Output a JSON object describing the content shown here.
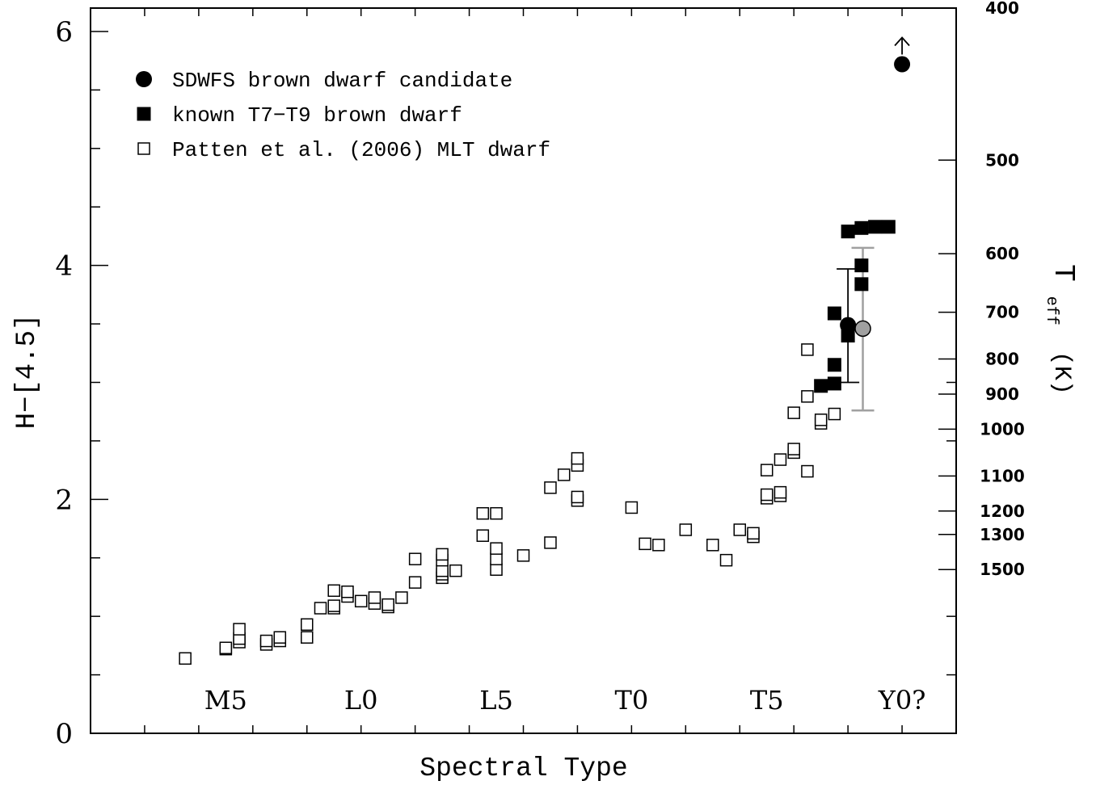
{
  "chart_data": {
    "type": "scatter",
    "xlabel": "Spectral Type",
    "ylabel": "H−[4.5]",
    "y2label": "T",
    "y2label_sub": "eff",
    "y2label_unit": "(K)",
    "xlim": [
      -2,
      30
    ],
    "ylim": [
      0,
      6.2
    ],
    "x_ticklabels": [
      {
        "x": 3,
        "label": "M5"
      },
      {
        "x": 8,
        "label": "L0"
      },
      {
        "x": 13,
        "label": "L5"
      },
      {
        "x": 18,
        "label": "T0"
      },
      {
        "x": 23,
        "label": "T5"
      },
      {
        "x": 28,
        "label": "Y0?"
      }
    ],
    "y_ticklabels": [
      {
        "y": 0,
        "label": "0"
      },
      {
        "y": 2,
        "label": "2"
      },
      {
        "y": 4,
        "label": "4"
      },
      {
        "y": 6,
        "label": "6"
      }
    ],
    "teff_ticklabels": [
      {
        "y": 6.2,
        "label": "400"
      },
      {
        "y": 4.9,
        "label": "500"
      },
      {
        "y": 4.1,
        "label": "600"
      },
      {
        "y": 3.6,
        "label": "700"
      },
      {
        "y": 3.2,
        "label": "800"
      },
      {
        "y": 2.9,
        "label": "900"
      },
      {
        "y": 2.6,
        "label": "1000"
      },
      {
        "y": 2.2,
        "label": "1100"
      },
      {
        "y": 1.9,
        "label": "1200"
      },
      {
        "y": 1.7,
        "label": "1300"
      },
      {
        "y": 1.4,
        "label": "1500"
      }
    ],
    "legend_placement": "top-left",
    "legend": [
      {
        "marker": "filled-circle",
        "label": "SDWFS brown dwarf candidate"
      },
      {
        "marker": "filled-square",
        "label": "known T7−T9 brown dwarf"
      },
      {
        "marker": "open-square",
        "label": "Patten et al. (2006) MLT dwarf"
      }
    ],
    "series": [
      {
        "name": "Patten et al. (2006) MLT dwarf",
        "marker": "open-square",
        "points": [
          [
            1.5,
            0.64
          ],
          [
            3,
            0.72
          ],
          [
            3,
            0.73
          ],
          [
            3.5,
            0.78
          ],
          [
            3.5,
            0.81
          ],
          [
            3.5,
            0.89
          ],
          [
            4.5,
            0.76
          ],
          [
            4.5,
            0.79
          ],
          [
            5,
            0.79
          ],
          [
            5,
            0.82
          ],
          [
            6,
            0.82
          ],
          [
            6,
            0.93
          ],
          [
            6.5,
            1.07
          ],
          [
            7,
            1.07
          ],
          [
            7,
            1.09
          ],
          [
            7,
            1.22
          ],
          [
            7.5,
            1.17
          ],
          [
            7.5,
            1.21
          ],
          [
            8,
            1.13
          ],
          [
            8.5,
            1.11
          ],
          [
            8.5,
            1.16
          ],
          [
            9,
            1.08
          ],
          [
            9,
            1.1
          ],
          [
            9.5,
            1.16
          ],
          [
            10,
            1.29
          ],
          [
            10,
            1.49
          ],
          [
            11,
            1.33
          ],
          [
            11,
            1.36
          ],
          [
            11,
            1.39
          ],
          [
            11,
            1.48
          ],
          [
            11,
            1.53
          ],
          [
            11.5,
            1.39
          ],
          [
            12.5,
            1.69
          ],
          [
            12.5,
            1.88
          ],
          [
            13,
            1.4
          ],
          [
            13,
            1.49
          ],
          [
            13,
            1.58
          ],
          [
            13,
            1.88
          ],
          [
            14,
            1.52
          ],
          [
            15,
            1.63
          ],
          [
            15,
            2.1
          ],
          [
            15.5,
            2.21
          ],
          [
            16,
            1.99
          ],
          [
            16,
            2.02
          ],
          [
            16,
            2.29
          ],
          [
            16,
            2.35
          ],
          [
            18,
            1.93
          ],
          [
            18.5,
            1.62
          ],
          [
            19,
            1.61
          ],
          [
            20,
            1.74
          ],
          [
            21,
            1.61
          ],
          [
            21.5,
            1.48
          ],
          [
            22,
            1.74
          ],
          [
            22.5,
            1.68
          ],
          [
            22.5,
            1.71
          ],
          [
            23,
            2.01
          ],
          [
            23,
            2.04
          ],
          [
            23,
            2.25
          ],
          [
            23.5,
            2.03
          ],
          [
            23.5,
            2.06
          ],
          [
            23.5,
            2.34
          ],
          [
            24,
            2.4
          ],
          [
            24,
            2.43
          ],
          [
            24,
            2.74
          ],
          [
            24.5,
            2.24
          ],
          [
            24.5,
            2.88
          ],
          [
            24.5,
            3.28
          ],
          [
            25,
            2.65
          ],
          [
            25,
            2.68
          ],
          [
            25.5,
            2.73
          ]
        ]
      },
      {
        "name": "known T7−T9 brown dwarf",
        "marker": "filled-square",
        "points": [
          [
            25,
            2.97
          ],
          [
            25.5,
            2.99
          ],
          [
            25.5,
            3.15
          ],
          [
            25.5,
            3.59
          ],
          [
            26,
            3.4
          ],
          [
            26,
            4.29
          ],
          [
            26.5,
            3.84
          ],
          [
            26.5,
            4.0
          ],
          [
            26.5,
            4.32
          ],
          [
            27,
            4.33
          ],
          [
            27.5,
            4.33
          ]
        ]
      },
      {
        "name": "SDWFS brown dwarf candidate",
        "marker": "filled-circle",
        "points": [
          [
            26,
            3.49
          ],
          [
            28,
            5.72
          ]
        ],
        "errorbars": [
          {
            "x": 26,
            "y": 3.49,
            "low": 3.0,
            "high": 3.97
          }
        ],
        "lower_limit_arrow": {
          "x": 28,
          "y": 5.72
        }
      },
      {
        "name": "",
        "marker": "gray-circle",
        "points": [
          [
            26.55,
            3.46
          ]
        ],
        "errorbars": [
          {
            "x": 26.55,
            "y": 3.46,
            "low": 2.76,
            "high": 4.15
          }
        ]
      }
    ]
  },
  "colors": {
    "axis": "#000000",
    "marker_fill": "#000000",
    "open_marker_fill": "#ffffff",
    "gray_marker": "#a0a0a0",
    "gray_errorbar": "#a0a0a0"
  }
}
